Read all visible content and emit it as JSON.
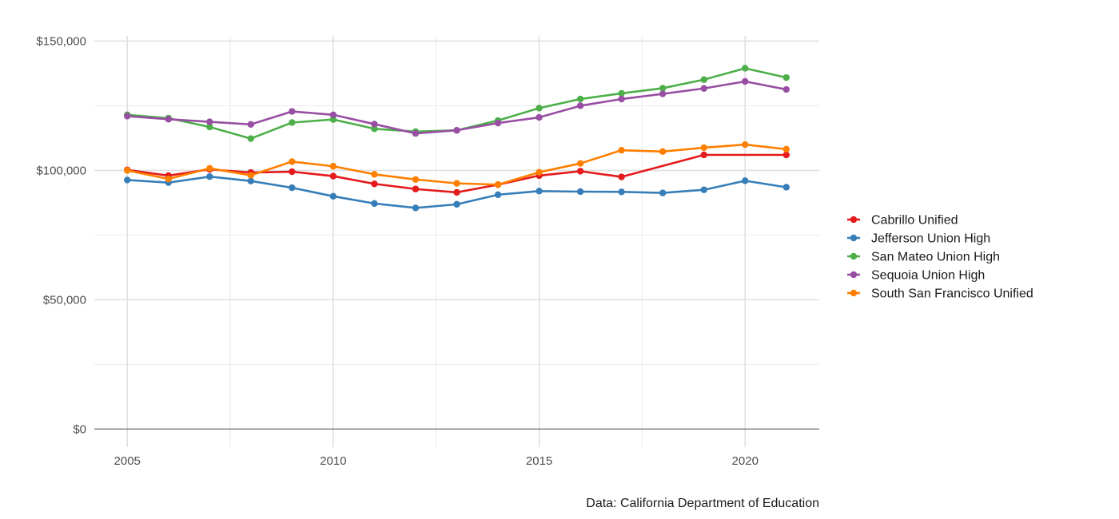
{
  "chart_data": {
    "type": "line",
    "title": "",
    "xlabel": "",
    "ylabel": "",
    "caption": "Data: California Department of Education",
    "x": [
      2005,
      2006,
      2007,
      2008,
      2009,
      2010,
      2011,
      2012,
      2013,
      2014,
      2015,
      2016,
      2017,
      2018,
      2019,
      2020,
      2021
    ],
    "xlim": [
      2004.2,
      2021.8
    ],
    "ylim": [
      -7000,
      152000
    ],
    "x_ticks": [
      {
        "value": 2005,
        "label": "2005"
      },
      {
        "value": 2010,
        "label": "2010"
      },
      {
        "value": 2015,
        "label": "2015"
      },
      {
        "value": 2020,
        "label": "2020"
      }
    ],
    "y_ticks": [
      {
        "value": 0,
        "label": "$0"
      },
      {
        "value": 50000,
        "label": "$50,000"
      },
      {
        "value": 100000,
        "label": "$100,000"
      },
      {
        "value": 150000,
        "label": "$150,000"
      }
    ],
    "grid": true,
    "legend_position": "right",
    "series": [
      {
        "name": "Cabrillo Unified",
        "color": "#e41a1c",
        "values": [
          100200,
          98000,
          100400,
          99200,
          99500,
          97800,
          94800,
          92800,
          91500,
          94500,
          98000,
          99700,
          97500,
          null,
          106000,
          null,
          106000
        ]
      },
      {
        "name": "Jefferson Union High",
        "color": "#377eb8",
        "values": [
          96300,
          95300,
          97600,
          95900,
          93300,
          90000,
          87200,
          85500,
          86900,
          90600,
          92000,
          91800,
          91700,
          91300,
          92500,
          96000,
          93500
        ]
      },
      {
        "name": "San Mateo Union High",
        "color": "#4daf4a",
        "values": [
          121500,
          120200,
          116800,
          112300,
          118500,
          119700,
          116100,
          115000,
          115500,
          119300,
          124100,
          127600,
          129800,
          131800,
          135100,
          139500,
          135900
        ]
      },
      {
        "name": "Sequoia Union High",
        "color": "#984ea3",
        "values": [
          121000,
          119800,
          118800,
          117800,
          122800,
          121500,
          117900,
          114300,
          115500,
          118300,
          120500,
          125000,
          127600,
          129600,
          131700,
          134400,
          131300
        ]
      },
      {
        "name": "South San Francisco Unified",
        "color": "#ff7f00",
        "values": [
          100000,
          96700,
          100800,
          98100,
          103400,
          101600,
          98500,
          96500,
          95000,
          94500,
          99300,
          102700,
          107800,
          107300,
          108800,
          110000,
          108200
        ]
      }
    ]
  }
}
